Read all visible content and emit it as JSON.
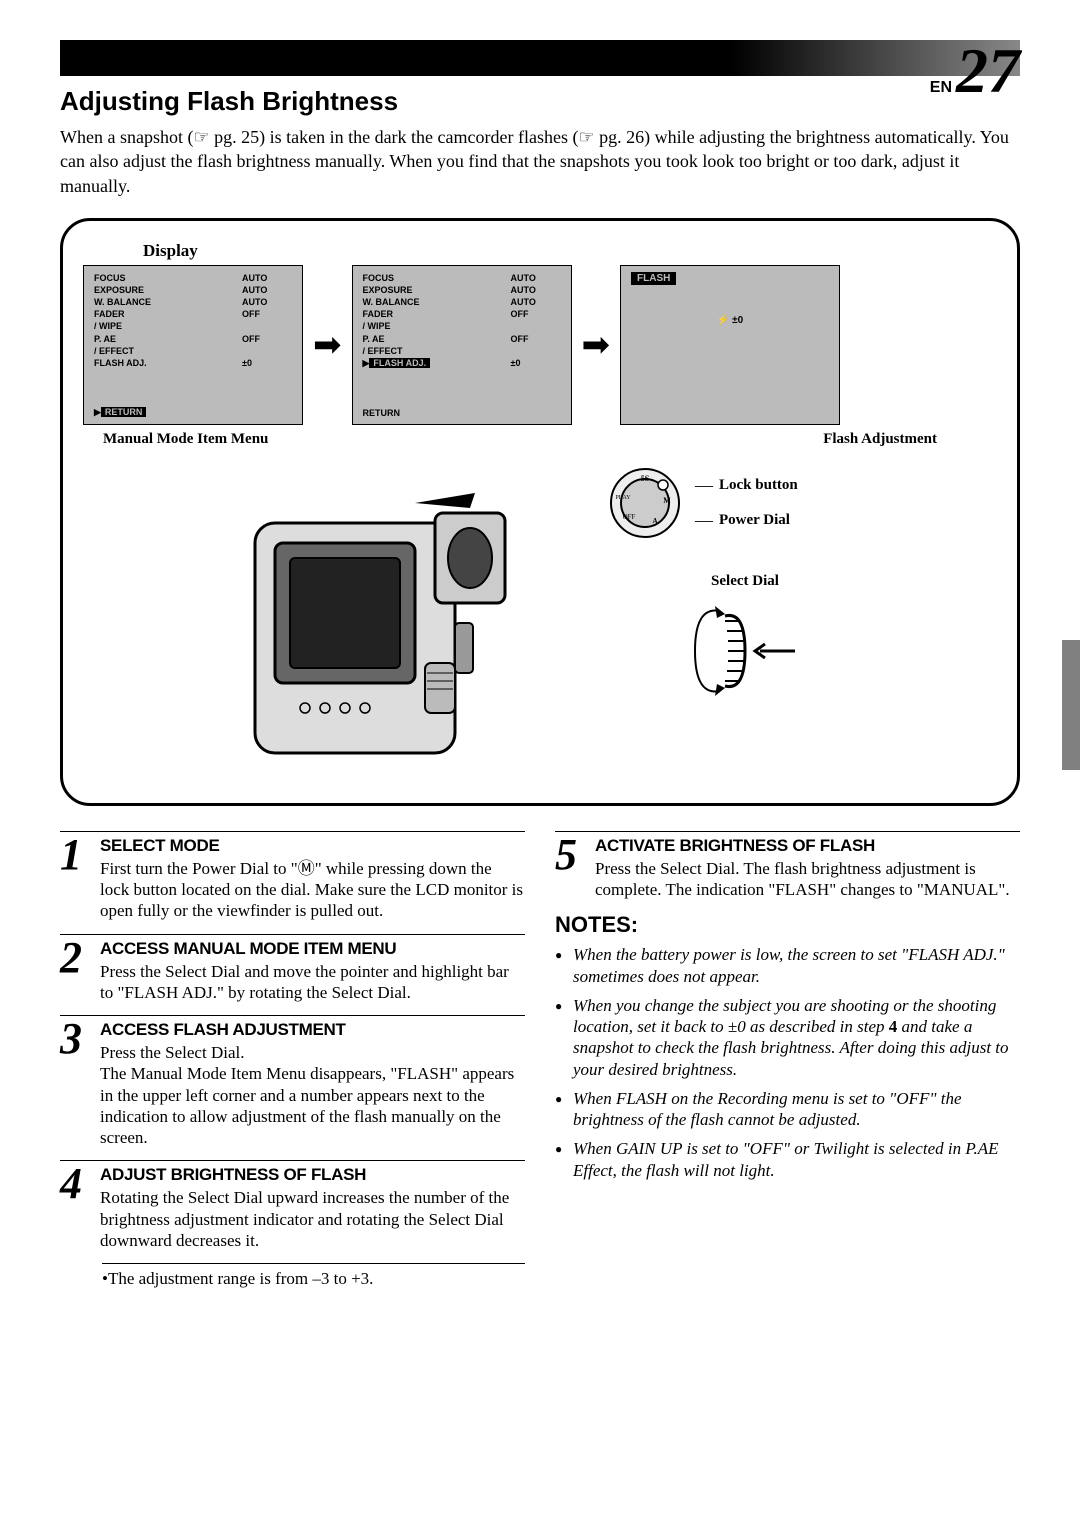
{
  "header": {
    "lang_label": "EN",
    "page_number": "27"
  },
  "title": "Adjusting Flash Brightness",
  "intro": "When a snapshot (☞ pg. 25) is taken in the dark the camcorder flashes (☞ pg. 26) while adjusting the brightness automatically. You can also adjust the flash brightness manually. When you find that the snapshots you took look too bright or too dark, adjust it manually.",
  "diagram": {
    "display_label": "Display",
    "menu1": {
      "items": [
        {
          "label": "FOCUS",
          "value": "AUTO"
        },
        {
          "label": "EXPOSURE",
          "value": "AUTO"
        },
        {
          "label": "W. BALANCE",
          "value": "AUTO"
        },
        {
          "label": "FADER",
          "value": "OFF"
        },
        {
          "label": "  / WIPE",
          "value": ""
        },
        {
          "label": "P. AE",
          "value": "OFF"
        },
        {
          "label": "  / EFFECT",
          "value": ""
        },
        {
          "label": "FLASH ADJ.",
          "value": "±0"
        }
      ],
      "return": "RETURN",
      "return_inverted": true
    },
    "menu2": {
      "items": [
        {
          "label": "FOCUS",
          "value": "AUTO"
        },
        {
          "label": "EXPOSURE",
          "value": "AUTO"
        },
        {
          "label": "W. BALANCE",
          "value": "AUTO"
        },
        {
          "label": "FADER",
          "value": "OFF"
        },
        {
          "label": "  / WIPE",
          "value": ""
        },
        {
          "label": "P. AE",
          "value": "OFF"
        },
        {
          "label": "  / EFFECT",
          "value": ""
        },
        {
          "label": "FLASH ADJ.",
          "value": "±0",
          "inverted": true
        }
      ],
      "return": "RETURN",
      "return_inverted": false
    },
    "flash_screen": {
      "title": "FLASH",
      "value": "⚡ ±0"
    },
    "caption_left": "Manual Mode Item Menu",
    "caption_right": "Flash Adjustment",
    "labels": {
      "lock": "Lock button",
      "power": "Power Dial",
      "select": "Select Dial"
    }
  },
  "steps": [
    {
      "num": "1",
      "title": "SELECT MODE",
      "text": "First turn the Power Dial to \"Ⓜ\" while pressing down the lock button located on the dial. Make sure the LCD monitor is open fully or the viewfinder is pulled out."
    },
    {
      "num": "2",
      "title": "ACCESS MANUAL MODE ITEM MENU",
      "text": "Press the Select Dial and move the pointer and highlight bar to \"FLASH ADJ.\" by rotating the Select Dial."
    },
    {
      "num": "3",
      "title": "ACCESS FLASH ADJUSTMENT",
      "text": "Press the Select Dial.\nThe Manual Mode Item Menu disappears, \"FLASH\" appears in the upper left corner and a number appears next to the indication to allow adjustment of the flash manually on the screen."
    },
    {
      "num": "4",
      "title": "ADJUST BRIGHTNESS OF FLASH",
      "text": "Rotating the Select Dial upward increases the number of the brightness adjustment indicator and rotating the Select Dial downward decreases it."
    },
    {
      "num": "5",
      "title": "ACTIVATE BRIGHTNESS OF FLASH",
      "text": "Press the Select Dial. The flash brightness adjustment is complete. The indication \"FLASH\" changes to \"MANUAL\"."
    }
  ],
  "range_note": "•The adjustment range is from –3 to +3.",
  "notes_title": "NOTES:",
  "notes": [
    "When the battery power is low, the screen to set \"FLASH ADJ.\" sometimes does not appear.",
    "When you change the subject you are shooting or the shooting location, set it back to ±0 as described in step 4 and take a snapshot to check the flash brightness. After doing this adjust to your desired brightness.",
    "When FLASH on the Recording menu is set to \"OFF\" the brightness of the flash cannot be adjusted.",
    "When GAIN UP is set to \"OFF\" or Twilight is selected in P.AE Effect, the flash will not light."
  ],
  "colors": {
    "menu_bg": "#bbbbbb",
    "side_tab": "#808080"
  }
}
